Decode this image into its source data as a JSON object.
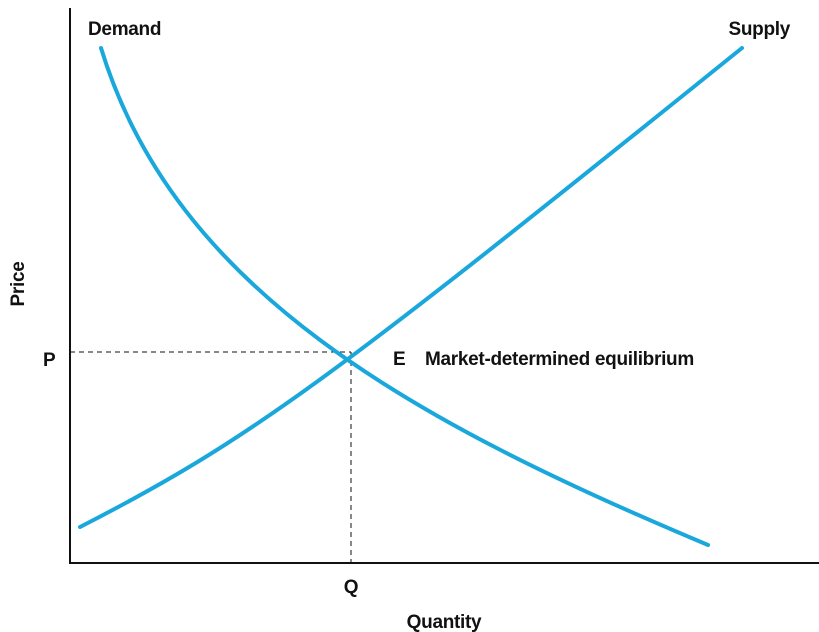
{
  "chart_data": {
    "type": "line",
    "title": "",
    "xlabel": "Quantity",
    "ylabel": "Price",
    "grid": false,
    "curve_color": "#1aa7dc",
    "series": [
      {
        "name": "Demand",
        "shape": "downward-sloping convex curve",
        "trend": "decreasing"
      },
      {
        "name": "Supply",
        "shape": "upward-sloping, slightly convex curve",
        "trend": "increasing"
      }
    ],
    "equilibrium": {
      "point_label": "E",
      "description": "Market-determined equilibrium",
      "price_label": "P",
      "quantity_label": "Q"
    }
  }
}
